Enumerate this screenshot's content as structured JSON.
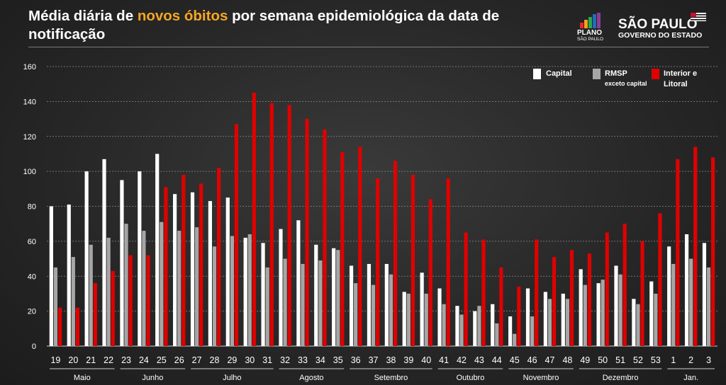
{
  "title_parts": {
    "before": "Média diária de ",
    "highlight": "novos óbitos",
    "after": " por semana epidemiológica da data de notificação"
  },
  "logo": {
    "plano_line1": "PLANO",
    "plano_line2": "SÃO PAULO",
    "sp_line1": "SÃO PAULO",
    "sp_line2": "GOVERNO DO ESTADO"
  },
  "colors": {
    "capital": "#ffffff",
    "rmsp": "#a6a6a6",
    "interior": "#e00000",
    "highlight": "#f5a623"
  },
  "chart_data": {
    "type": "bar",
    "title": "Média diária de novos óbitos por semana epidemiológica da data de notificação",
    "ylim": [
      0,
      160
    ],
    "yticks": [
      0,
      20,
      40,
      60,
      80,
      100,
      120,
      140,
      160
    ],
    "grid": true,
    "legend_position": "top-right",
    "categories": [
      "19",
      "20",
      "21",
      "22",
      "23",
      "24",
      "25",
      "26",
      "27",
      "28",
      "29",
      "30",
      "31",
      "32",
      "33",
      "34",
      "35",
      "36",
      "37",
      "38",
      "39",
      "40",
      "41",
      "42",
      "43",
      "44",
      "45",
      "46",
      "47",
      "48",
      "49",
      "50",
      "51",
      "52",
      "53",
      "1",
      "2",
      "3"
    ],
    "series": [
      {
        "name": "Capital",
        "legend_line1": "Capital",
        "legend_line2": "",
        "values": [
          80,
          81,
          100,
          107,
          95,
          100,
          110,
          87,
          88,
          83,
          85,
          62,
          59,
          67,
          72,
          58,
          56,
          46,
          47,
          47,
          31,
          42,
          33,
          23,
          20,
          24,
          17,
          33,
          31,
          30,
          44,
          36,
          46,
          27,
          37,
          57,
          64,
          59
        ]
      },
      {
        "name": "RMSP exceto capital",
        "legend_line1": "RMSP",
        "legend_line2": "exceto capital",
        "values": [
          45,
          51,
          58,
          62,
          70,
          66,
          71,
          66,
          68,
          57,
          63,
          64,
          45,
          50,
          47,
          49,
          55,
          36,
          35,
          41,
          30,
          30,
          24,
          18,
          23,
          13,
          7,
          17,
          27,
          27,
          35,
          38,
          41,
          24,
          30,
          47,
          50,
          45
        ]
      },
      {
        "name": "Interior e Litoral",
        "legend_line1": "Interior e",
        "legend_line2": "Litoral",
        "values": [
          22,
          22,
          36,
          43,
          52,
          52,
          91,
          98,
          93,
          102,
          127,
          145,
          139,
          138,
          130,
          124,
          111,
          114,
          96,
          106,
          98,
          84,
          96,
          65,
          61,
          45,
          34,
          61,
          51,
          55,
          53,
          65,
          70,
          60,
          76,
          107,
          114,
          108
        ]
      }
    ],
    "month_groups": [
      {
        "label": "Maio",
        "start": 0,
        "end": 3
      },
      {
        "label": "Junho",
        "start": 4,
        "end": 7
      },
      {
        "label": "Julho",
        "start": 8,
        "end": 12
      },
      {
        "label": "Agosto",
        "start": 13,
        "end": 16
      },
      {
        "label": "Setembro",
        "start": 17,
        "end": 21
      },
      {
        "label": "Outubro",
        "start": 22,
        "end": 25
      },
      {
        "label": "Novembro",
        "start": 26,
        "end": 29
      },
      {
        "label": "Dezembro",
        "start": 30,
        "end": 34
      },
      {
        "label": "Jan.",
        "start": 35,
        "end": 37
      }
    ]
  }
}
